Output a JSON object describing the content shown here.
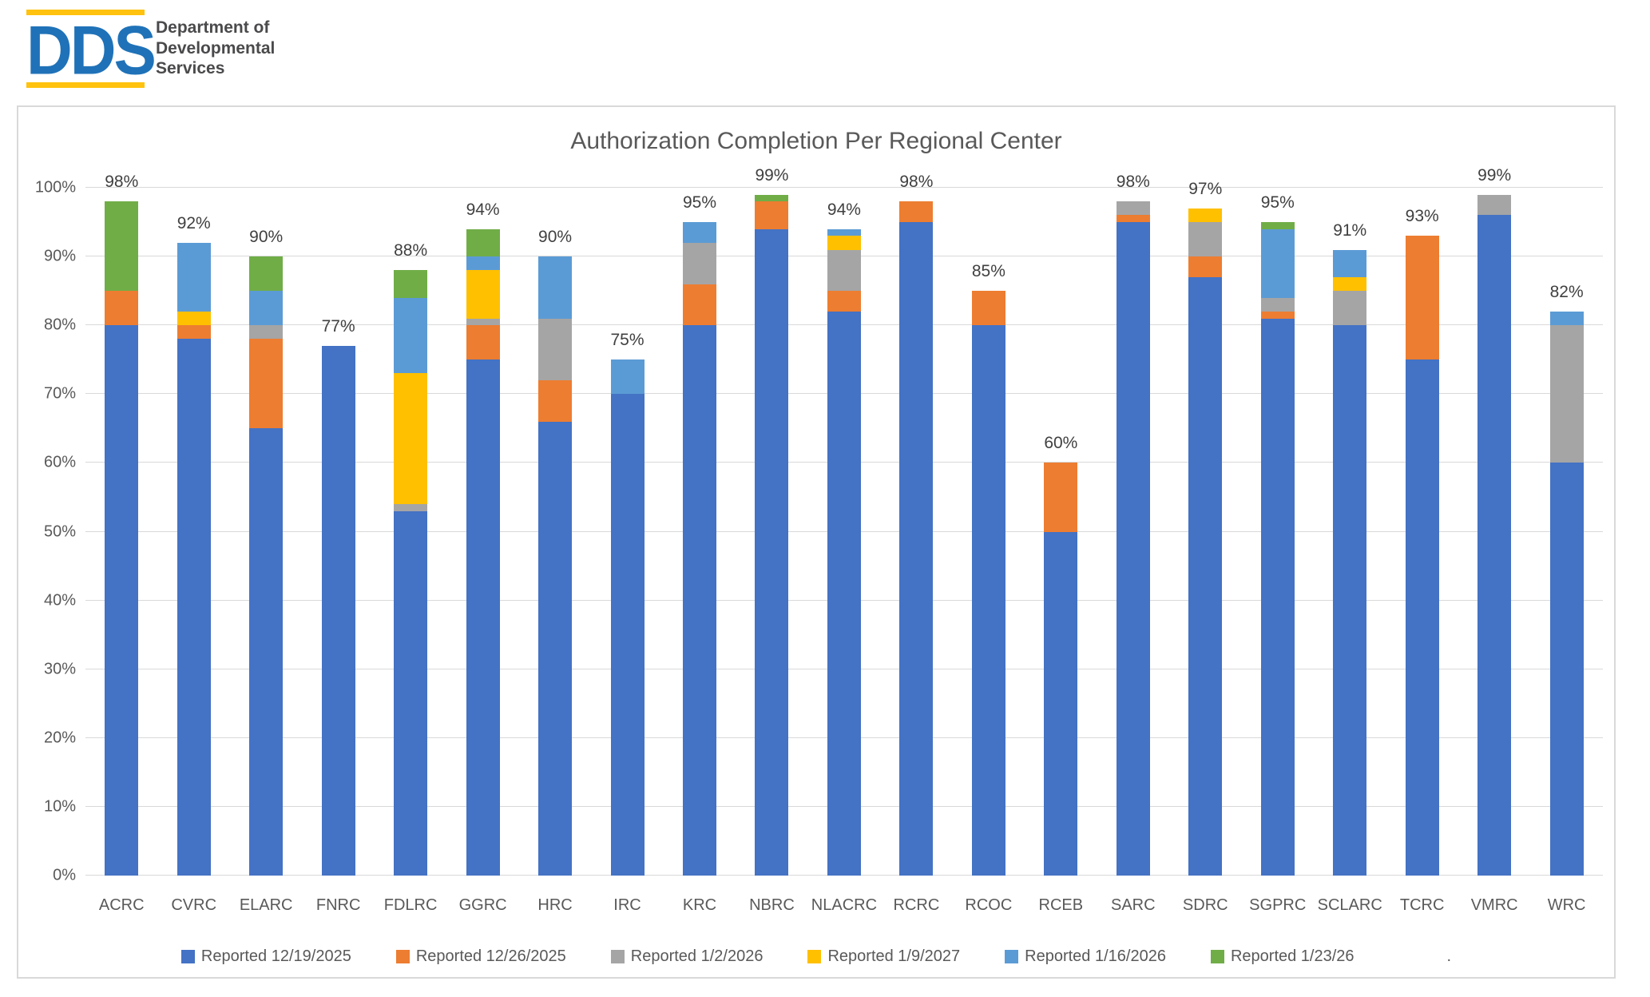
{
  "logo": {
    "acronym": "DDS",
    "name_line1": "Department of",
    "name_line2": "Developmental",
    "name_line3": "Services",
    "accent_color": "#FFC20E",
    "acronym_color": "#1F72B8"
  },
  "chart_data": {
    "type": "bar",
    "stacked": true,
    "title": "Authorization Completion Per Regional Center",
    "xlabel": "",
    "ylabel": "",
    "ylim": [
      0,
      100
    ],
    "grid": true,
    "legend_position": "bottom",
    "legend_trailing_text": ".",
    "y_ticks": [
      "0%",
      "10%",
      "20%",
      "30%",
      "40%",
      "50%",
      "60%",
      "70%",
      "80%",
      "90%",
      "100%"
    ],
    "categories": [
      "ACRC",
      "CVRC",
      "ELARC",
      "FNRC",
      "FDLRC",
      "GGRC",
      "HRC",
      "IRC",
      "KRC",
      "NBRC",
      "NLACRC",
      "RCRC",
      "RCOC",
      "RCEB",
      "SARC",
      "SDRC",
      "SGPRC",
      "SCLARC",
      "TCRC",
      "VMRC",
      "WRC"
    ],
    "total_labels": [
      "98%",
      "92%",
      "90%",
      "77%",
      "88%",
      "94%",
      "90%",
      "75%",
      "95%",
      "99%",
      "94%",
      "98%",
      "85%",
      "60%",
      "98%",
      "97%",
      "95%",
      "91%",
      "93%",
      "99%",
      "82%"
    ],
    "series": [
      {
        "name": "Reported 12/19/2025",
        "color": "#4472C4",
        "values": [
          80,
          78,
          65,
          77,
          53,
          75,
          66,
          70,
          80,
          94,
          82,
          95,
          80,
          50,
          95,
          87,
          81,
          80,
          75,
          96,
          60
        ]
      },
      {
        "name": "Reported 12/26/2025",
        "color": "#ED7D31",
        "values": [
          5,
          2,
          13,
          0,
          0,
          5,
          6,
          0,
          6,
          4,
          3,
          3,
          5,
          10,
          1,
          3,
          1,
          0,
          18,
          0,
          0
        ]
      },
      {
        "name": "Reported 1/2/2026",
        "color": "#A5A5A5",
        "values": [
          0,
          0,
          2,
          0,
          1,
          1,
          9,
          0,
          6,
          0,
          6,
          0,
          0,
          0,
          2,
          5,
          2,
          5,
          0,
          3,
          20
        ]
      },
      {
        "name": "Reported 1/9/2027",
        "color": "#FFC000",
        "values": [
          0,
          2,
          0,
          0,
          19,
          7,
          0,
          0,
          0,
          0,
          2,
          0,
          0,
          0,
          0,
          2,
          0,
          2,
          0,
          0,
          0
        ]
      },
      {
        "name": "Reported 1/16/2026",
        "color": "#5B9BD5",
        "values": [
          0,
          10,
          5,
          0,
          11,
          2,
          9,
          5,
          3,
          0,
          1,
          0,
          0,
          0,
          0,
          0,
          10,
          4,
          0,
          0,
          2
        ]
      },
      {
        "name": "Reported 1/23/26",
        "color": "#70AD47",
        "values": [
          13,
          0,
          5,
          0,
          4,
          4,
          0,
          0,
          0,
          1,
          0,
          0,
          0,
          0,
          0,
          0,
          1,
          0,
          0,
          0,
          0
        ]
      }
    ]
  }
}
